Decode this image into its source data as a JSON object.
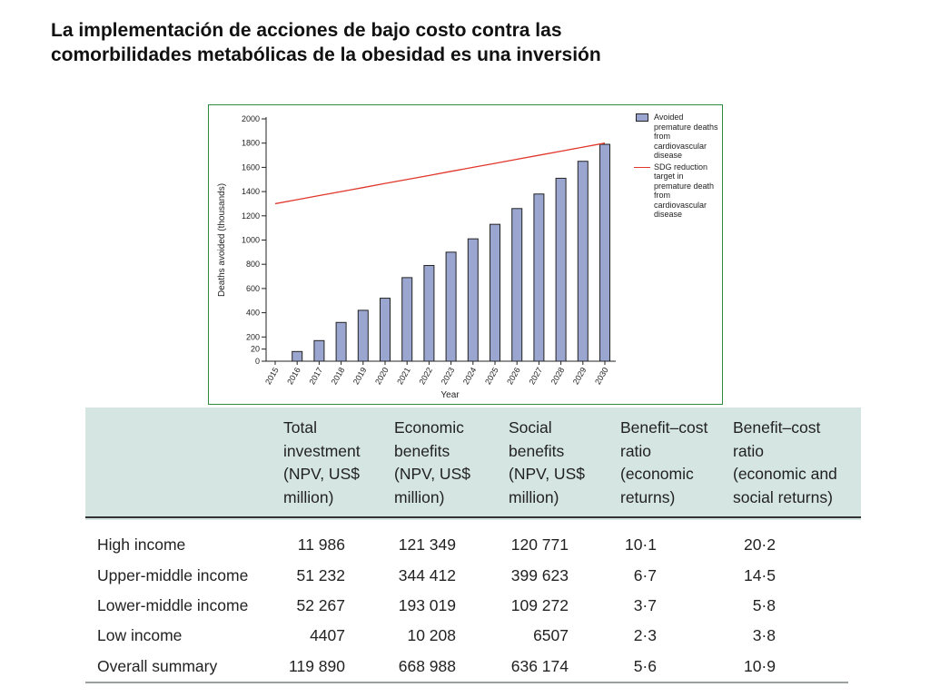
{
  "slide": {
    "title_line1": "La implementación de acciones de bajo costo contra las",
    "title_line2": "comorbilidades metabólicas de la obesidad es una inversión"
  },
  "chart_data": {
    "type": "bar",
    "title": "",
    "xlabel": "Year",
    "ylabel": "Deaths avoided (thousands)",
    "categories": [
      "2015",
      "2016",
      "2017",
      "2018",
      "2019",
      "2020",
      "2021",
      "2022",
      "2023",
      "2024",
      "2025",
      "2026",
      "2027",
      "2028",
      "2029",
      "2030"
    ],
    "series": [
      {
        "name": "Avoided premature deaths from cardiovascular disease",
        "type": "bar",
        "values": [
          0,
          80,
          170,
          320,
          420,
          520,
          690,
          790,
          900,
          1010,
          1130,
          1260,
          1380,
          1510,
          1650,
          1790
        ],
        "color": "#9aa6cf"
      },
      {
        "name": "SDG reduction target in premature death from cardiovascular disease",
        "type": "line",
        "values": [
          1300,
          1333,
          1367,
          1400,
          1433,
          1467,
          1500,
          1533,
          1567,
          1600,
          1633,
          1667,
          1700,
          1733,
          1767,
          1800
        ],
        "color": "#e0372c"
      }
    ],
    "y_ticks": [
      "0",
      "20",
      "200",
      "400",
      "600",
      "800",
      "1000",
      "1200",
      "1400",
      "1600",
      "1800",
      "2000"
    ],
    "ylim": [
      0,
      2000
    ],
    "grid": false,
    "legend_position": "right"
  },
  "legend": {
    "bar_label": "Avoided premature deaths from cardiovascular disease",
    "line_label": "SDG reduction target in premature death from cardiovascular disease"
  },
  "table": {
    "headers": [
      "Total\ninvestment\n(NPV, US$\nmillion)",
      "Economic\nbenefits\n(NPV, US$\nmillion)",
      "Social\nbenefits\n(NPV, US$\nmillion)",
      "Benefit–cost\nratio\n(economic\nreturns)",
      "Benefit–cost\nratio\n(economic and\nsocial returns)"
    ],
    "rows": [
      {
        "label": "High income",
        "values": [
          "11 986",
          "121 349",
          "120 771",
          "10·1",
          "20·2"
        ]
      },
      {
        "label": "Upper-middle income",
        "values": [
          "51 232",
          "344 412",
          "399 623",
          "6·7",
          "14·5"
        ]
      },
      {
        "label": "Lower-middle income",
        "values": [
          "52 267",
          "193 019",
          "109 272",
          "3·7",
          "5·8"
        ]
      },
      {
        "label": "Low income",
        "values": [
          "4407",
          "10 208",
          "6507",
          "2·3",
          "3·8"
        ]
      },
      {
        "label": "Overall summary",
        "values": [
          "119 890",
          "668 988",
          "636 174",
          "5·6",
          "10·9"
        ]
      }
    ]
  }
}
